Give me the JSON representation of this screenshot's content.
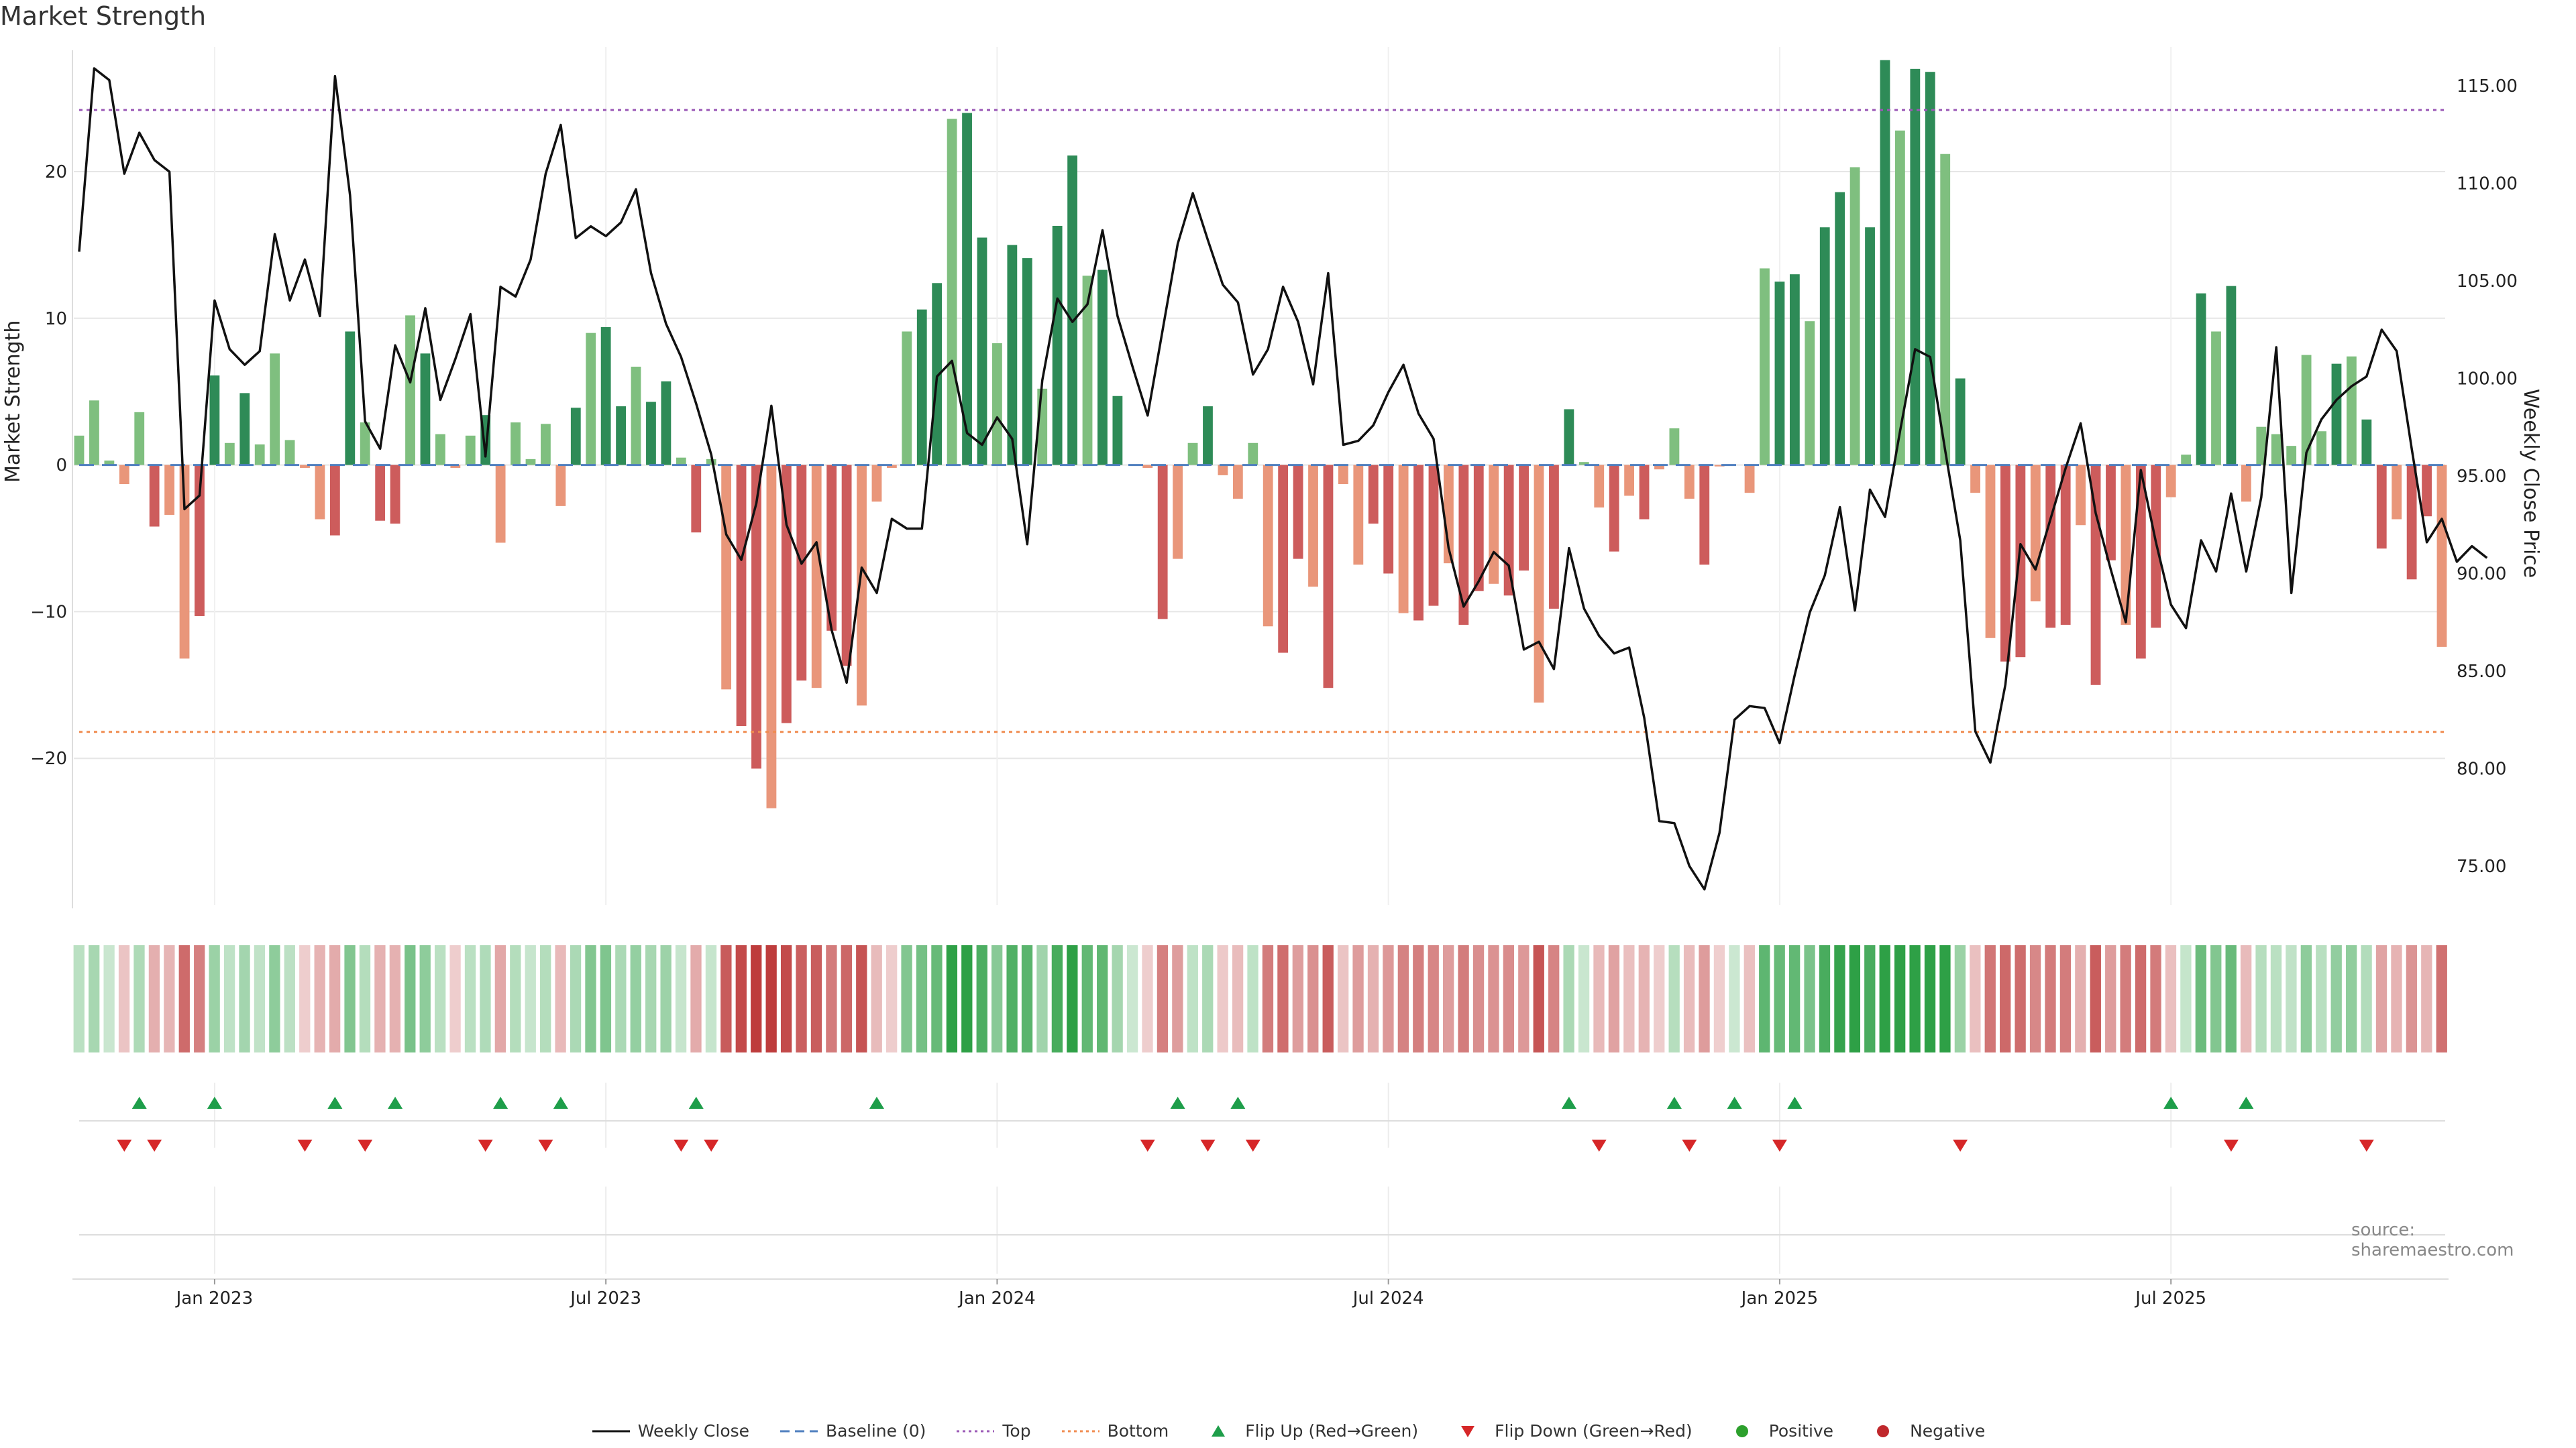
{
  "chart_data": {
    "type": "bar",
    "title": "Market Strength",
    "ylabel_left": "Market Strength",
    "ylabel_right": "Weekly Close Price",
    "source": "source: sharemaestro.com",
    "ylim_left": [
      -30,
      28.5
    ],
    "ylim_right": [
      73,
      117
    ],
    "left_ticks": [
      20,
      10,
      0,
      -10,
      -20
    ],
    "left_tick_labels": [
      "20",
      "10",
      "0",
      "−10",
      "−20"
    ],
    "right_ticks": [
      115,
      110,
      105,
      100,
      95,
      90,
      85,
      80,
      75
    ],
    "right_tick_labels": [
      "115.00",
      "110.00",
      "105.00",
      "100.00",
      "95.00",
      "90.00",
      "85.00",
      "80.00",
      "75.00"
    ],
    "top_line": 24.2,
    "bottom_line": -18.2,
    "x_tick_labels": [
      "Jan 2023",
      "Jul 2023",
      "Jan 2024",
      "Jul 2024",
      "Jan 2025",
      "Jul 2025"
    ],
    "x_tick_weeks": [
      9,
      35,
      61,
      87,
      113,
      139
    ],
    "strength": [
      2,
      4.4,
      0.3,
      -1.3,
      3.6,
      -4.2,
      -3.4,
      -13.2,
      -10.3,
      6.1,
      1.5,
      4.9,
      1.4,
      7.6,
      1.7,
      -0.2,
      -3.7,
      -4.8,
      9.1,
      2.9,
      -3.8,
      -4,
      10.2,
      7.6,
      2.1,
      -0.2,
      2,
      3.4,
      -5.3,
      2.9,
      0.4,
      2.8,
      -2.8,
      3.9,
      9,
      9.4,
      4,
      6.7,
      4.3,
      5.7,
      0.5,
      -4.6,
      0.4,
      -15.3,
      -17.8,
      -20.7,
      -23.4,
      -17.6,
      -14.7,
      -15.2,
      -11.3,
      -13.7,
      -16.4,
      -2.5,
      -0.2,
      9.1,
      10.6,
      12.4,
      23.6,
      24,
      15.5,
      8.3,
      15,
      14.1,
      5.2,
      16.3,
      21.1,
      12.9,
      13.3,
      4.7,
      0,
      -0.2,
      -10.5,
      -6.4,
      1.5,
      4,
      -0.7,
      -2.3,
      1.5,
      -11,
      -12.8,
      -6.4,
      -8.3,
      -15.2,
      -1.3,
      -6.8,
      -4,
      -7.4,
      -10.1,
      -10.6,
      -9.6,
      -6.7,
      -10.9,
      -8.6,
      -8.1,
      -8.9,
      -7.2,
      -16.2,
      -9.8,
      3.8,
      0.2,
      -2.9,
      -5.9,
      -2.1,
      -3.7,
      -0.3,
      2.5,
      -2.3,
      -6.8,
      -0.1,
      0,
      -1.9,
      13.4,
      12.5,
      13,
      9.8,
      16.2,
      18.6,
      20.3,
      16.2,
      27.6,
      22.8,
      27,
      26.8,
      21.2,
      5.9,
      -1.9,
      -11.8,
      -13.4,
      -13.1,
      -9.3,
      -11.1,
      -10.9,
      -4.1,
      -15,
      -6.5,
      -10.9,
      -13.2,
      -11.1,
      -2.2,
      0.7,
      11.7,
      9.1,
      12.2,
      -2.5,
      2.6,
      2.1,
      1.3,
      7.5,
      2.3,
      6.9,
      7.4,
      3.1,
      -5.7,
      -3.7,
      -7.8,
      -3.5,
      -12.4
    ],
    "weekly_close": [
      106.5,
      115.9,
      115.3,
      110.5,
      112.6,
      111.2,
      110.6,
      93.3,
      94,
      104,
      101.5,
      100.7,
      101.4,
      107.4,
      104,
      106.1,
      103.2,
      115.5,
      109.4,
      97.8,
      96.4,
      101.7,
      99.8,
      103.6,
      98.9,
      101,
      103.3,
      96,
      104.7,
      104.2,
      106.1,
      110.5,
      113,
      107.2,
      107.8,
      107.3,
      108,
      109.7,
      105.4,
      102.8,
      101.1,
      98.7,
      96.1,
      92,
      90.7,
      93.6,
      98.6,
      92.5,
      90.5,
      91.6,
      87.1,
      84.4,
      90.3,
      89,
      92.8,
      92.3,
      92.3,
      100.1,
      100.9,
      97.2,
      96.6,
      98,
      96.9,
      91.5,
      99.9,
      104.1,
      102.9,
      103.8,
      107.6,
      103.2,
      100.6,
      98.1,
      102.5,
      106.9,
      109.5,
      107.1,
      104.8,
      103.9,
      100.2,
      101.5,
      104.7,
      102.9,
      99.7,
      105.4,
      96.6,
      96.8,
      97.6,
      99.3,
      100.7,
      98.2,
      96.9,
      91.3,
      88.3,
      89.6,
      91.1,
      90.4,
      86.1,
      86.5,
      85.1,
      91.3,
      88.2,
      86.8,
      85.9,
      86.2,
      82.6,
      77.3,
      77.2,
      75,
      73.8,
      76.7,
      82.5,
      83.2,
      83.1,
      81.3,
      84.8,
      88,
      89.9,
      93.4,
      88.1,
      94.3,
      92.9,
      97.3,
      101.5,
      101.1,
      96.3,
      91.7,
      81.9,
      80.3,
      84.3,
      91.5,
      90.2,
      92.8,
      95.4,
      97.7,
      93.1,
      90.2,
      87.5,
      95.3,
      91.6,
      88.4,
      87.2,
      91.7,
      90.1,
      94.1,
      90.1,
      93.9,
      101.6,
      89,
      96.2,
      97.9,
      98.9,
      99.6,
      100.1,
      102.5,
      101.4,
      96.4,
      91.6,
      92.8,
      90.6,
      91.4,
      90.8
    ],
    "flip_up_weeks": [
      4,
      9,
      17,
      21,
      28,
      32,
      41,
      53,
      73,
      77,
      99,
      106,
      110,
      114,
      139,
      144
    ],
    "flip_down_weeks": [
      3,
      5,
      15,
      19,
      27,
      31,
      40,
      42,
      71,
      75,
      78,
      101,
      107,
      113,
      125,
      143,
      152
    ],
    "colors": {
      "strong_positive": "#2e8b57",
      "weak_positive": "#7fbf7f",
      "strong_negative": "#cd5c5c",
      "weak_negative": "#e9967a",
      "line": "#111111",
      "baseline": "#4f7fbf",
      "top": "#9b59b6",
      "bottom": "#f08c50",
      "flip_up": "#1e9e4a",
      "flip_down": "#d62728",
      "positive": "#2ca02c",
      "negative": "#c0282c",
      "grid": "#e6e6e6"
    },
    "legend": [
      "Weekly Close",
      "Baseline (0)",
      "Top",
      "Bottom",
      "Flip Up (Red→Green)",
      "Flip Down (Green→Red)",
      "Positive",
      "Negative"
    ]
  }
}
